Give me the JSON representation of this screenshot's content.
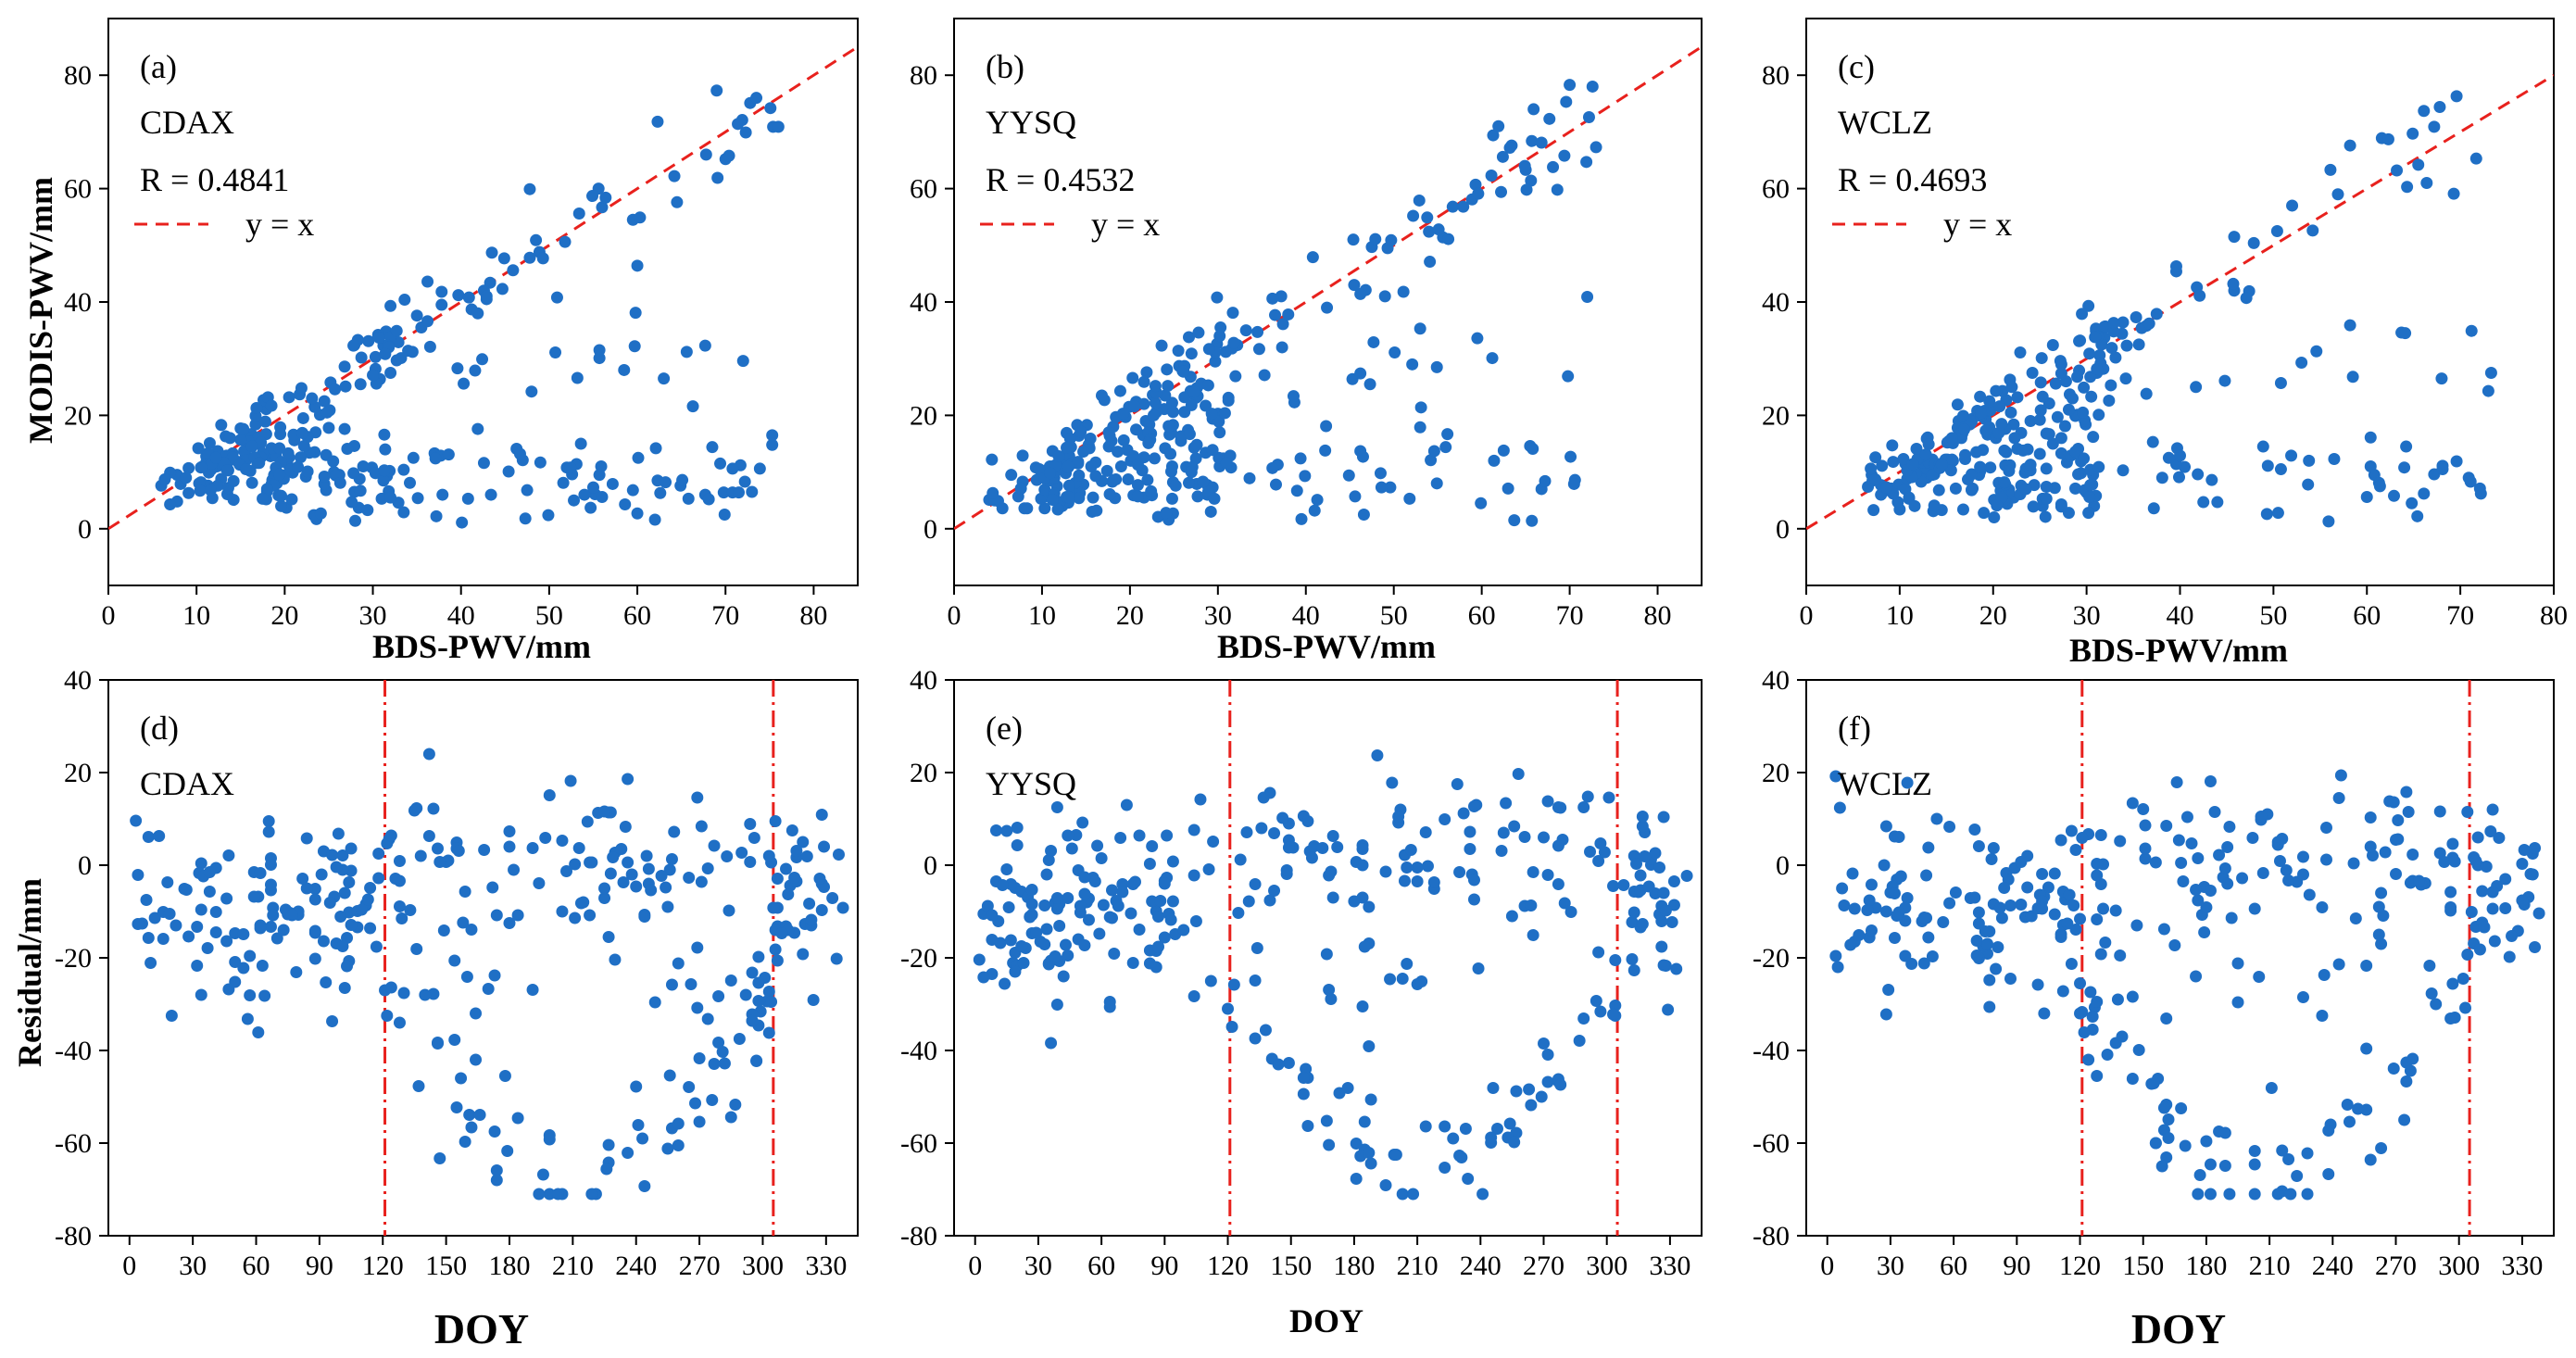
{
  "figure": {
    "scatter_ylabel": "MODIS-PWV/mm",
    "scatter_xlabel": "BDS-PWV/mm",
    "residual_ylabel": "Residual/mm",
    "residual_xlabel": "DOY"
  },
  "colors": {
    "point": "#1f6fc5",
    "reference_line": "#e8211d",
    "axis": "#000000"
  },
  "chart_data": [
    {
      "type": "scatter",
      "panel": "(a)",
      "station": "CDAX",
      "r_text": "R = 0.4841",
      "legend": "y = x",
      "xlabel": "BDS-PWV/mm",
      "ylabel": "MODIS-PWV/mm",
      "xlim": [
        0,
        85
      ],
      "ylim": [
        -10,
        90
      ],
      "xticks": [
        0,
        10,
        20,
        30,
        40,
        50,
        60,
        70,
        80
      ],
      "yticks": [
        0,
        20,
        40,
        60,
        80
      ],
      "reference_line": "y = x",
      "seed": 11,
      "point_count": 340,
      "x_range": [
        6,
        76
      ]
    },
    {
      "type": "scatter",
      "panel": "(b)",
      "station": "YYSQ",
      "r_text": "R = 0.4532",
      "legend": "y = x",
      "xlabel": "BDS-PWV/mm",
      "ylabel": "",
      "xlim": [
        0,
        85
      ],
      "ylim": [
        -10,
        90
      ],
      "xticks": [
        0,
        10,
        20,
        30,
        40,
        50,
        60,
        70,
        80
      ],
      "yticks": [
        0,
        20,
        40,
        60,
        80
      ],
      "reference_line": "y = x",
      "seed": 23,
      "point_count": 340,
      "x_range": [
        4,
        74
      ]
    },
    {
      "type": "scatter",
      "panel": "(c)",
      "station": "WCLZ",
      "r_text": "R = 0.4693",
      "legend": "y = x",
      "xlabel": "BDS-PWV/mm",
      "ylabel": "",
      "xlim": [
        0,
        80
      ],
      "ylim": [
        -10,
        90
      ],
      "xticks": [
        0,
        10,
        20,
        30,
        40,
        50,
        60,
        70,
        80
      ],
      "yticks": [
        0,
        20,
        40,
        60,
        80
      ],
      "reference_line": "y = x",
      "seed": 37,
      "point_count": 340,
      "x_range": [
        6,
        74
      ]
    },
    {
      "type": "scatter",
      "panel": "(d)",
      "station": "CDAX",
      "xlabel": "DOY",
      "ylabel": "Residual/mm",
      "xlim": [
        -10,
        345
      ],
      "ylim": [
        -80,
        40
      ],
      "xticks": [
        0,
        30,
        60,
        90,
        120,
        150,
        180,
        210,
        240,
        270,
        300,
        330
      ],
      "yticks": [
        -80,
        -60,
        -40,
        -20,
        0,
        20,
        40
      ],
      "vlines": [
        121,
        305
      ],
      "seed": 51,
      "point_count": 340
    },
    {
      "type": "scatter",
      "panel": "(e)",
      "station": "YYSQ",
      "xlabel": "DOY",
      "ylabel": "",
      "xlim": [
        -10,
        345
      ],
      "ylim": [
        -80,
        40
      ],
      "xticks": [
        0,
        30,
        60,
        90,
        120,
        150,
        180,
        210,
        240,
        270,
        300,
        330
      ],
      "yticks": [
        -80,
        -60,
        -40,
        -20,
        0,
        20,
        40
      ],
      "vlines": [
        121,
        305
      ],
      "seed": 67,
      "point_count": 340
    },
    {
      "type": "scatter",
      "panel": "(f)",
      "station": "WCLZ",
      "xlabel": "DOY",
      "ylabel": "",
      "xlim": [
        -10,
        345
      ],
      "ylim": [
        -80,
        40
      ],
      "xticks": [
        0,
        30,
        60,
        90,
        120,
        150,
        180,
        210,
        240,
        270,
        300,
        330
      ],
      "yticks": [
        -80,
        -60,
        -40,
        -20,
        0,
        20,
        40
      ],
      "vlines": [
        121,
        305
      ],
      "seed": 83,
      "point_count": 340
    }
  ]
}
